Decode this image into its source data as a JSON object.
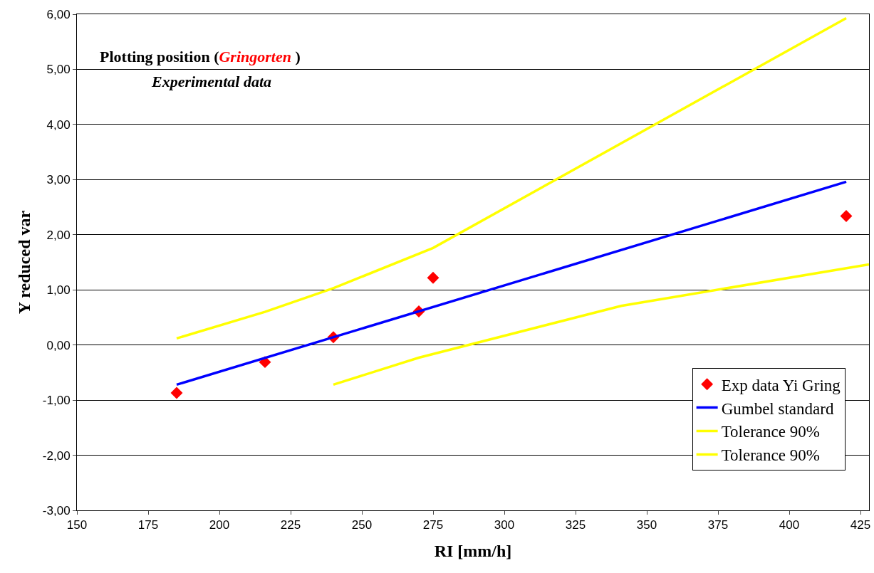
{
  "chart_data": {
    "type": "line",
    "xlabel": "RI [mm/h]",
    "ylabel": "Y reduced var",
    "annotations": [
      "Plotting position (Gringorten )",
      "Experimental data"
    ],
    "xlim": [
      150,
      428
    ],
    "xticks": [
      150,
      175,
      200,
      225,
      250,
      275,
      300,
      325,
      350,
      375,
      400,
      425
    ],
    "ylim": [
      -3,
      6
    ],
    "yticks": [
      {
        "value": -3,
        "label": "-3,00"
      },
      {
        "value": -2,
        "label": "-2,00"
      },
      {
        "value": -1,
        "label": "-1,00"
      },
      {
        "value": 0,
        "label": "0,00"
      },
      {
        "value": 1,
        "label": "1,00"
      },
      {
        "value": 2,
        "label": "2,00"
      },
      {
        "value": 3,
        "label": "3,00"
      },
      {
        "value": 4,
        "label": "4,00"
      },
      {
        "value": 5,
        "label": "5,00"
      },
      {
        "value": 6,
        "label": "6,00"
      }
    ],
    "grid": "y",
    "legend": "bottom right",
    "series": [
      {
        "name": "Exp data Yi Gring",
        "type": "scatter",
        "marker": "diamond",
        "color": "#ff0000",
        "x": [
          185,
          216,
          240,
          270,
          275,
          420
        ],
        "values": [
          -0.87,
          -0.31,
          0.14,
          0.61,
          1.22,
          2.34
        ]
      },
      {
        "name": "Gumbel standard",
        "color": "#0000ff",
        "x": [
          185,
          420
        ],
        "values": [
          -0.72,
          2.96
        ]
      },
      {
        "name": "Tolerance 90%",
        "color": "#ffff00",
        "x": [
          185,
          216,
          240,
          275,
          420
        ],
        "values": [
          0.12,
          0.6,
          1.03,
          1.76,
          5.93
        ]
      },
      {
        "name": "Tolerance 90%",
        "color": "#ffff00",
        "x": [
          240,
          270,
          341,
          428
        ],
        "values": [
          -0.72,
          -0.23,
          0.71,
          1.46
        ]
      }
    ]
  }
}
